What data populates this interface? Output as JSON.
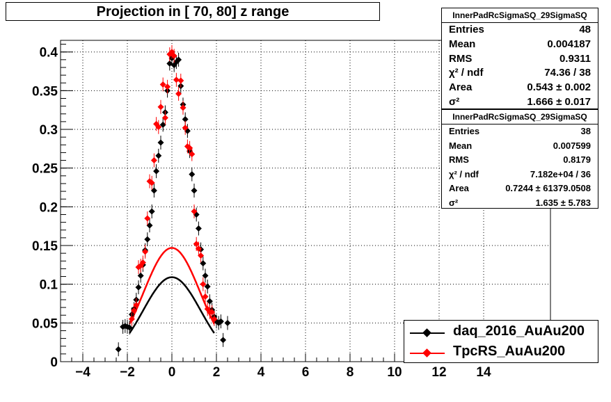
{
  "title": "Projection in [  70,  80] z range",
  "stats": [
    {
      "name": "InnerPadRcSigmaSQ_29SigmaSQ",
      "rows": [
        {
          "label": "Entries",
          "value": "48"
        },
        {
          "label": "Mean",
          "value": "0.004187"
        },
        {
          "label": "RMS",
          "value": "0.9311"
        },
        {
          "label": "χ² / ndf",
          "value": "74.36 / 38"
        },
        {
          "label": "Area",
          "value": "0.543 ± 0.002"
        },
        {
          "label": "σ²",
          "value": "1.666 ± 0.017"
        }
      ]
    },
    {
      "name": "InnerPadRcSigmaSQ_29SigmaSQ",
      "rows": [
        {
          "label": "Entries",
          "value": "38"
        },
        {
          "label": "Mean",
          "value": "0.007599"
        },
        {
          "label": "RMS",
          "value": "0.8179"
        },
        {
          "label": "χ² / ndf",
          "value": "7.182e+04 / 36"
        },
        {
          "label": "Area",
          "value": "0.7244 ± 61379.0508"
        },
        {
          "label": "σ²",
          "value": "1.635 ± 5.783"
        }
      ]
    }
  ],
  "legend": [
    {
      "label": "daq_2016_AuAu200",
      "color": "#000000"
    },
    {
      "label": "TpcRS_AuAu200",
      "color": "#ff0000"
    }
  ],
  "chart_data": {
    "type": "scatter",
    "title": "Projection in [  70,  80] z range",
    "xlim": [
      -5,
      17
    ],
    "ylim": [
      0,
      0.415
    ],
    "grid": true,
    "legend_position": "bottom-right",
    "x_ticks": [
      -4,
      -2,
      0,
      2,
      4,
      6,
      8,
      10,
      12,
      14
    ],
    "x_tick_labels": [
      "−4",
      "−2",
      "0",
      "2",
      "4",
      "6",
      "8",
      "10",
      "12",
      "14"
    ],
    "y_ticks": [
      0,
      0.05,
      0.1,
      0.15,
      0.2,
      0.25,
      0.3,
      0.35,
      0.4
    ],
    "y_tick_labels": [
      "0",
      "0.05",
      "0.1",
      "0.15",
      "0.2",
      "0.25",
      "0.3",
      "0.35",
      "0.4"
    ],
    "series": [
      {
        "name": "daq_2016_AuAu200",
        "color": "#000000",
        "points": [
          [
            -2.4,
            0.016
          ],
          [
            -2.2,
            0.045
          ],
          [
            -2.1,
            0.046
          ],
          [
            -2.0,
            0.045
          ],
          [
            -1.9,
            0.044
          ],
          [
            -1.8,
            0.061
          ],
          [
            -1.7,
            0.068
          ],
          [
            -1.6,
            0.08
          ],
          [
            -1.5,
            0.096
          ],
          [
            -1.4,
            0.111
          ],
          [
            -1.3,
            0.125
          ],
          [
            -1.2,
            0.144
          ],
          [
            -1.1,
            0.158
          ],
          [
            -1.0,
            0.176
          ],
          [
            -0.9,
            0.194
          ],
          [
            -0.8,
            0.221
          ],
          [
            -0.7,
            0.246
          ],
          [
            -0.6,
            0.266
          ],
          [
            -0.5,
            0.283
          ],
          [
            -0.4,
            0.306
          ],
          [
            -0.3,
            0.322
          ],
          [
            -0.2,
            0.35
          ],
          [
            -0.1,
            0.385
          ],
          [
            0.0,
            0.392
          ],
          [
            0.1,
            0.383
          ],
          [
            0.2,
            0.387
          ],
          [
            0.3,
            0.39
          ],
          [
            0.4,
            0.356
          ],
          [
            0.5,
            0.332
          ],
          [
            0.6,
            0.313
          ],
          [
            0.7,
            0.298
          ],
          [
            0.8,
            0.272
          ],
          [
            0.9,
            0.242
          ],
          [
            1.0,
            0.221
          ],
          [
            1.1,
            0.19
          ],
          [
            1.2,
            0.172
          ],
          [
            1.3,
            0.145
          ],
          [
            1.4,
            0.127
          ],
          [
            1.5,
            0.111
          ],
          [
            1.6,
            0.097
          ],
          [
            1.7,
            0.078
          ],
          [
            1.8,
            0.067
          ],
          [
            1.9,
            0.058
          ],
          [
            2.0,
            0.052
          ],
          [
            2.1,
            0.05
          ],
          [
            2.2,
            0.052
          ],
          [
            2.3,
            0.028
          ],
          [
            2.5,
            0.05
          ]
        ],
        "fit": {
          "area": 0.543,
          "sigma2": 1.666,
          "mean": 0.0
        }
      },
      {
        "name": "TpcRS_AuAu200",
        "color": "#ff0000",
        "points": [
          [
            -1.8,
            0.055
          ],
          [
            -1.7,
            0.066
          ],
          [
            -1.6,
            0.073
          ],
          [
            -1.5,
            0.122
          ],
          [
            -1.4,
            0.124
          ],
          [
            -1.3,
            0.128
          ],
          [
            -1.2,
            0.142
          ],
          [
            -1.1,
            0.185
          ],
          [
            -1.0,
            0.233
          ],
          [
            -0.9,
            0.231
          ],
          [
            -0.8,
            0.26
          ],
          [
            -0.7,
            0.307
          ],
          [
            -0.6,
            0.303
          ],
          [
            -0.5,
            0.329
          ],
          [
            -0.4,
            0.358
          ],
          [
            -0.3,
            0.315
          ],
          [
            -0.2,
            0.355
          ],
          [
            -0.1,
            0.397
          ],
          [
            0.0,
            0.4
          ],
          [
            0.1,
            0.395
          ],
          [
            0.2,
            0.364
          ],
          [
            0.3,
            0.346
          ],
          [
            0.4,
            0.363
          ],
          [
            0.5,
            0.328
          ],
          [
            0.6,
            0.302
          ],
          [
            0.7,
            0.278
          ],
          [
            0.8,
            0.276
          ],
          [
            0.9,
            0.268
          ],
          [
            1.0,
            0.194
          ],
          [
            1.1,
            0.152
          ],
          [
            1.2,
            0.146
          ],
          [
            1.3,
            0.137
          ],
          [
            1.4,
            0.1
          ],
          [
            1.5,
            0.084
          ],
          [
            1.6,
            0.068
          ],
          [
            1.7,
            0.064
          ],
          [
            1.8,
            0.064
          ],
          [
            1.9,
            0.055
          ]
        ],
        "fit": {
          "area": 0.7244,
          "sigma2": 1.635,
          "mean": 0.0
        }
      }
    ]
  }
}
